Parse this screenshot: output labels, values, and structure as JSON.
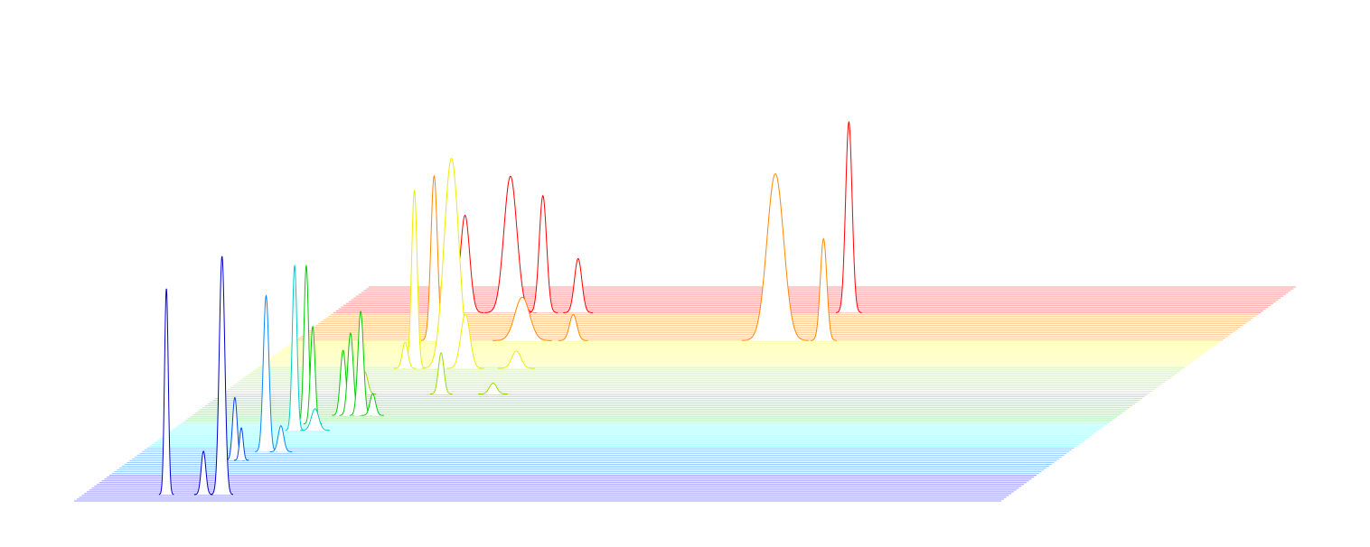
{
  "chart_data": {
    "type": "waterfall",
    "xlim": [
      0,
      100
    ],
    "ylim": [
      0,
      120
    ],
    "zlim": [
      0,
      1
    ],
    "plane_colors": [
      "#9a9aff",
      "#9accff",
      "#9affff",
      "#9aff9a",
      "#ccff9a",
      "#ffff9a",
      "#ffcc9a",
      "#ff9a9a"
    ],
    "series": [
      {
        "color": "#ff0000",
        "z": 0.88,
        "x": [
          14.2,
          19.1,
          22.6,
          26.4,
          55.6
        ],
        "values": [
          45,
          63,
          54,
          25,
          88
        ],
        "widths": [
          0.5,
          0.7,
          0.4,
          0.4,
          0.35
        ]
      },
      {
        "color": "#ff8800",
        "z": 0.75,
        "x": [
          15,
          51.8,
          57,
          24.5,
          30
        ],
        "values": [
          76,
          77,
          47,
          20,
          12
        ],
        "widths": [
          0.35,
          0.9,
          0.35,
          0.8,
          0.4
        ]
      },
      {
        "color": "#eeee00",
        "z": 0.62,
        "x": [
          17,
          21,
          16,
          22.5,
          28
        ],
        "values": [
          82,
          97,
          12,
          25,
          8
        ],
        "widths": [
          0.3,
          0.8,
          0.3,
          0.5,
          0.5
        ]
      },
      {
        "color": "#99dd00",
        "z": 0.5,
        "x": [
          23.7,
          29.3,
          15.5
        ],
        "values": [
          19,
          5,
          10
        ],
        "widths": [
          0.3,
          0.4,
          0.3
        ]
      },
      {
        "color": "#00cc00",
        "z": 0.4,
        "x": [
          16.3,
          17.1,
          18.2,
          19.5
        ],
        "values": [
          30,
          38,
          48,
          10
        ],
        "widths": [
          0.3,
          0.3,
          0.3,
          0.3
        ]
      },
      {
        "color": "#00cc00",
        "z": 0.36,
        "x": [
          13.6,
          14.3
        ],
        "values": [
          73,
          45
        ],
        "widths": [
          0.25,
          0.25
        ]
      },
      {
        "color": "#00cccc",
        "z": 0.33,
        "x": [
          13.3,
          15.5
        ],
        "values": [
          76,
          10
        ],
        "widths": [
          0.25,
          0.4
        ]
      },
      {
        "color": "#0088ff",
        "z": 0.23,
        "x": [
          13.4,
          15
        ],
        "values": [
          72,
          12
        ],
        "widths": [
          0.3,
          0.3
        ]
      },
      {
        "color": "#0044ee",
        "z": 0.19,
        "x": [
          11.3,
          12
        ],
        "values": [
          29,
          15
        ],
        "widths": [
          0.25,
          0.2
        ]
      },
      {
        "color": "#0000cc",
        "z": 0.03,
        "x": [
          9,
          13,
          15
        ],
        "values": [
          95,
          20,
          110
        ],
        "widths": [
          0.2,
          0.25,
          0.3
        ]
      }
    ]
  }
}
